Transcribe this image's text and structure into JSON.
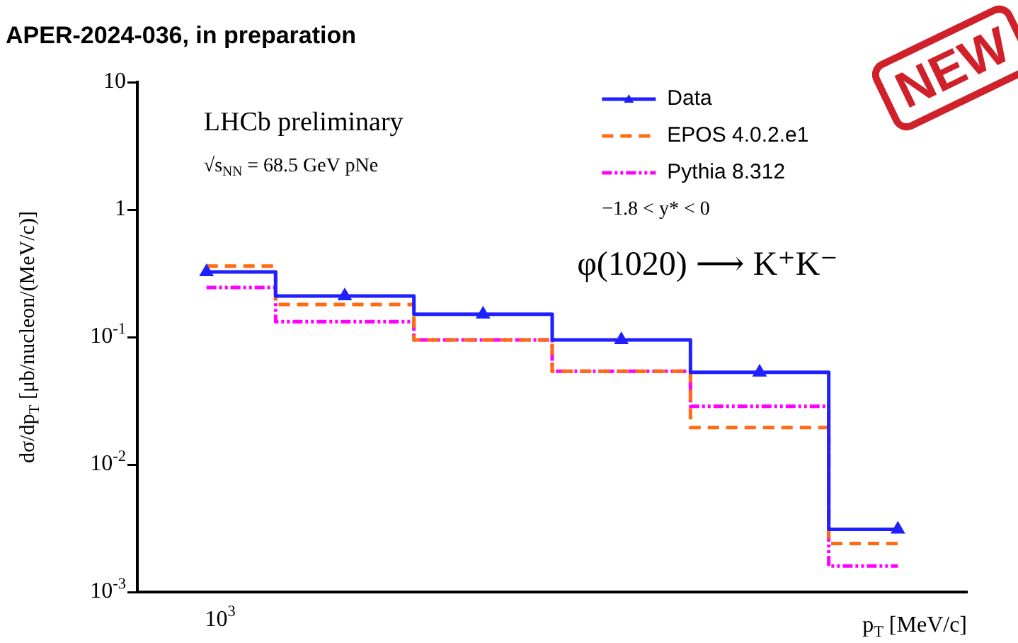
{
  "chart_data": {
    "type": "step",
    "title": "APER-2024-036, in preparation",
    "xlabel": "p$_{T}$ [MeV/c]",
    "ylabel": "dσ/dp$_{T}$ [μb/nucleon/(MeV/c)]",
    "log": "y",
    "categories": [
      null,
      null,
      null,
      null,
      null,
      null
    ],
    "ylim": [
      0.001,
      10
    ],
    "yticks": [
      {
        "value": 0.001,
        "label": "10$^{-3}$"
      },
      {
        "value": 0.01,
        "label": "10$^{-2}$"
      },
      {
        "value": 0.1,
        "label": "10$^{-1}$"
      },
      {
        "value": 1,
        "label": "1"
      },
      {
        "value": 10,
        "label": "10"
      }
    ],
    "legend": "top right",
    "series": [
      {
        "name": "Data",
        "color": "#1f1fff",
        "marker": "triangle",
        "line_style": "solid",
        "values": [
          0.324,
          0.21,
          0.151,
          0.095,
          0.053,
          0.0031
        ]
      },
      {
        "name": "EPOS 4.0.2.e1",
        "color": "#ff6a13",
        "marker": "none",
        "line_style": "dashed",
        "values": [
          0.36,
          0.18,
          0.095,
          0.054,
          0.0195,
          0.0024
        ]
      },
      {
        "name": "Pythia 8.312",
        "color": "#ff00ff",
        "marker": "none",
        "line_style": "dotted",
        "values": [
          0.245,
          0.132,
          0.095,
          0.054,
          0.0286,
          0.0016
        ]
      }
    ],
    "annotations": [
      "10$^{3}$",
      "LHCb preliminary",
      "√s$_{NN}$ = 68.5 GeV pNe",
      "−1.8 < y* < 0",
      "φ(1020) ⟶ K⁺K⁻",
      "NEW"
    ]
  }
}
